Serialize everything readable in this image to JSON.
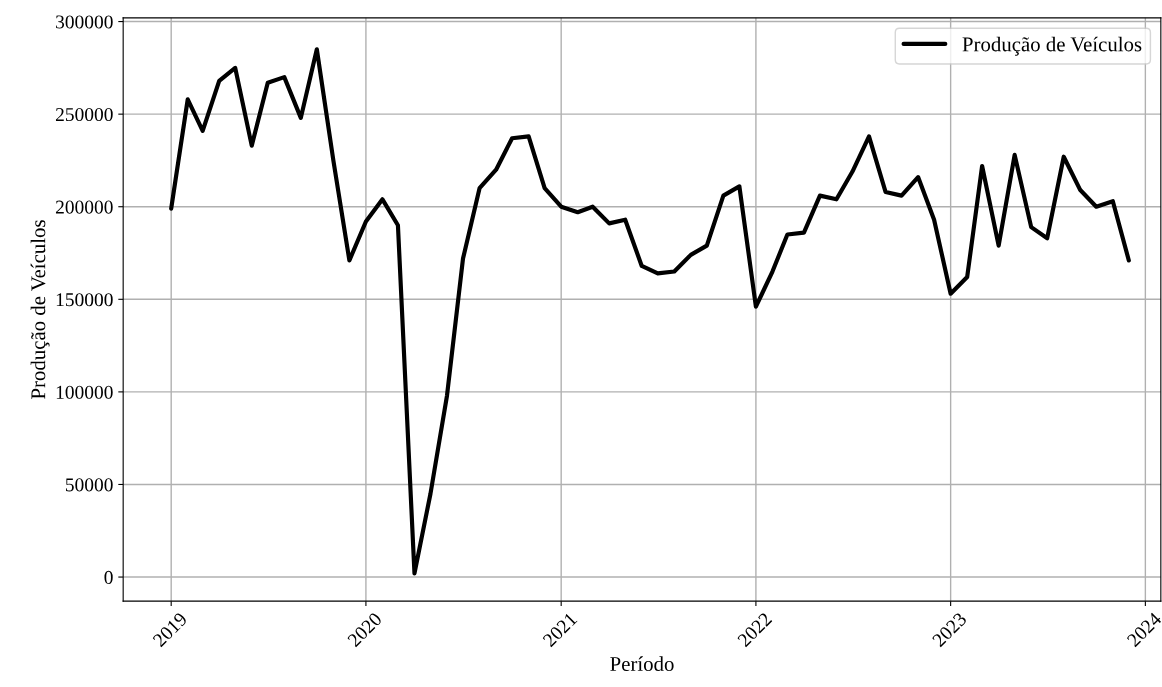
{
  "chart_data": {
    "type": "line",
    "xlabel": "Período",
    "ylabel": "Produção de Veículos",
    "x": [
      "2019-01",
      "2019-02",
      "2019-03",
      "2019-04",
      "2019-05",
      "2019-06",
      "2019-07",
      "2019-08",
      "2019-09",
      "2019-10",
      "2019-11",
      "2019-12",
      "2020-01",
      "2020-02",
      "2020-03",
      "2020-04",
      "2020-05",
      "2020-06",
      "2020-07",
      "2020-08",
      "2020-09",
      "2020-10",
      "2020-11",
      "2020-12",
      "2021-01",
      "2021-02",
      "2021-03",
      "2021-04",
      "2021-05",
      "2021-06",
      "2021-07",
      "2021-08",
      "2021-09",
      "2021-10",
      "2021-11",
      "2021-12",
      "2022-01",
      "2022-02",
      "2022-03",
      "2022-04",
      "2022-05",
      "2022-06",
      "2022-07",
      "2022-08",
      "2022-09",
      "2022-10",
      "2022-11",
      "2022-12",
      "2023-01",
      "2023-02",
      "2023-03",
      "2023-04",
      "2023-05",
      "2023-06",
      "2023-07",
      "2023-08",
      "2023-09",
      "2023-10",
      "2023-11",
      "2023-12"
    ],
    "series": [
      {
        "name": "Produção de Veículos",
        "color": "#000000",
        "values": [
          199000,
          258000,
          241000,
          268000,
          275000,
          233000,
          267000,
          270000,
          248000,
          285000,
          225000,
          171000,
          192000,
          204000,
          190000,
          2000,
          45000,
          98000,
          172000,
          210000,
          220000,
          237000,
          238000,
          210000,
          200000,
          197000,
          200000,
          191000,
          193000,
          168000,
          164000,
          165000,
          174000,
          179000,
          206000,
          211000,
          146000,
          165000,
          185000,
          186000,
          206000,
          204000,
          219000,
          238000,
          208000,
          206000,
          216000,
          193000,
          153000,
          162000,
          222000,
          179000,
          228000,
          189000,
          183000,
          227000,
          209000,
          200000,
          203000,
          171000
        ]
      }
    ],
    "xlim": [
      "2018-10-03",
      "2024-01-30"
    ],
    "xticks": [
      {
        "value": "2019-01-01",
        "label": "2019"
      },
      {
        "value": "2020-01-01",
        "label": "2020"
      },
      {
        "value": "2021-01-01",
        "label": "2021"
      },
      {
        "value": "2022-01-01",
        "label": "2022"
      },
      {
        "value": "2023-01-01",
        "label": "2023"
      },
      {
        "value": "2024-01-01",
        "label": "2024"
      }
    ],
    "ylim": [
      -13000,
      302000
    ],
    "yticks": [
      0,
      50000,
      100000,
      150000,
      200000,
      250000,
      300000
    ],
    "grid": true,
    "legend": "top right",
    "marker": "none",
    "line_style": "solid"
  }
}
